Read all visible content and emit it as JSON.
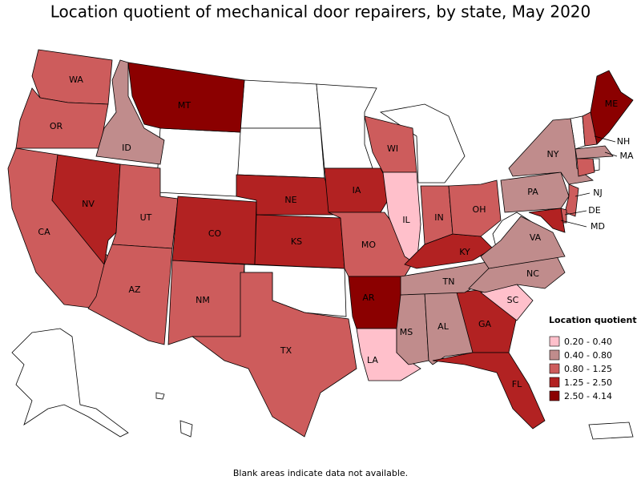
{
  "title": "Location quotient of mechanical door repairers, by state, May 2020",
  "legend": {
    "title": "Location quotient",
    "items": [
      {
        "label": "0.20 - 0.40",
        "color": "#ffc0cb"
      },
      {
        "label": "0.40 - 0.80",
        "color": "#c08c8c"
      },
      {
        "label": "0.80 - 1.25",
        "color": "#cd5c5c"
      },
      {
        "label": "1.25 - 2.50",
        "color": "#b22222"
      },
      {
        "label": "2.50 - 4.14",
        "color": "#8b0000"
      }
    ]
  },
  "states": [
    {
      "name": "WA",
      "color": "#cd5c5c"
    },
    {
      "name": "OR",
      "color": "#cd5c5c"
    },
    {
      "name": "CA",
      "color": "#cd5c5c"
    },
    {
      "name": "ID",
      "color": "#c08c8c"
    },
    {
      "name": "NV",
      "color": "#b22222"
    },
    {
      "name": "UT",
      "color": "#cd5c5c"
    },
    {
      "name": "AZ",
      "color": "#cd5c5c"
    },
    {
      "name": "MT",
      "color": "#8b0000"
    },
    {
      "name": "CO",
      "color": "#b22222"
    },
    {
      "name": "NM",
      "color": "#cd5c5c"
    },
    {
      "name": "NE",
      "color": "#b22222"
    },
    {
      "name": "KS",
      "color": "#b22222"
    },
    {
      "name": "TX",
      "color": "#cd5c5c"
    },
    {
      "name": "IA",
      "color": "#b22222"
    },
    {
      "name": "MO",
      "color": "#cd5c5c"
    },
    {
      "name": "AR",
      "color": "#8b0000"
    },
    {
      "name": "LA",
      "color": "#ffc0cb"
    },
    {
      "name": "WI",
      "color": "#cd5c5c"
    },
    {
      "name": "IL",
      "color": "#ffc0cb"
    },
    {
      "name": "IN",
      "color": "#cd5c5c"
    },
    {
      "name": "MS",
      "color": "#c08c8c"
    },
    {
      "name": "AL",
      "color": "#c08c8c"
    },
    {
      "name": "GA",
      "color": "#b22222"
    },
    {
      "name": "FL",
      "color": "#b22222"
    },
    {
      "name": "KY",
      "color": "#b22222"
    },
    {
      "name": "TN",
      "color": "#c08c8c"
    },
    {
      "name": "OH",
      "color": "#cd5c5c"
    },
    {
      "name": "SC",
      "color": "#ffc0cb"
    },
    {
      "name": "NC",
      "color": "#c08c8c"
    },
    {
      "name": "VA",
      "color": "#c08c8c"
    },
    {
      "name": "PA",
      "color": "#c08c8c"
    },
    {
      "name": "NY",
      "color": "#c08c8c"
    },
    {
      "name": "ME",
      "color": "#8b0000"
    },
    {
      "name": "NH",
      "color": "#cd5c5c"
    },
    {
      "name": "MA",
      "color": "#c08c8c"
    },
    {
      "name": "NJ",
      "color": "#cd5c5c"
    },
    {
      "name": "DE",
      "color": "#cd5c5c"
    },
    {
      "name": "MD",
      "color": "#b22222"
    },
    {
      "name": null,
      "color": "#cd5c5c"
    }
  ],
  "footnote": "Blank areas indicate data not available."
}
